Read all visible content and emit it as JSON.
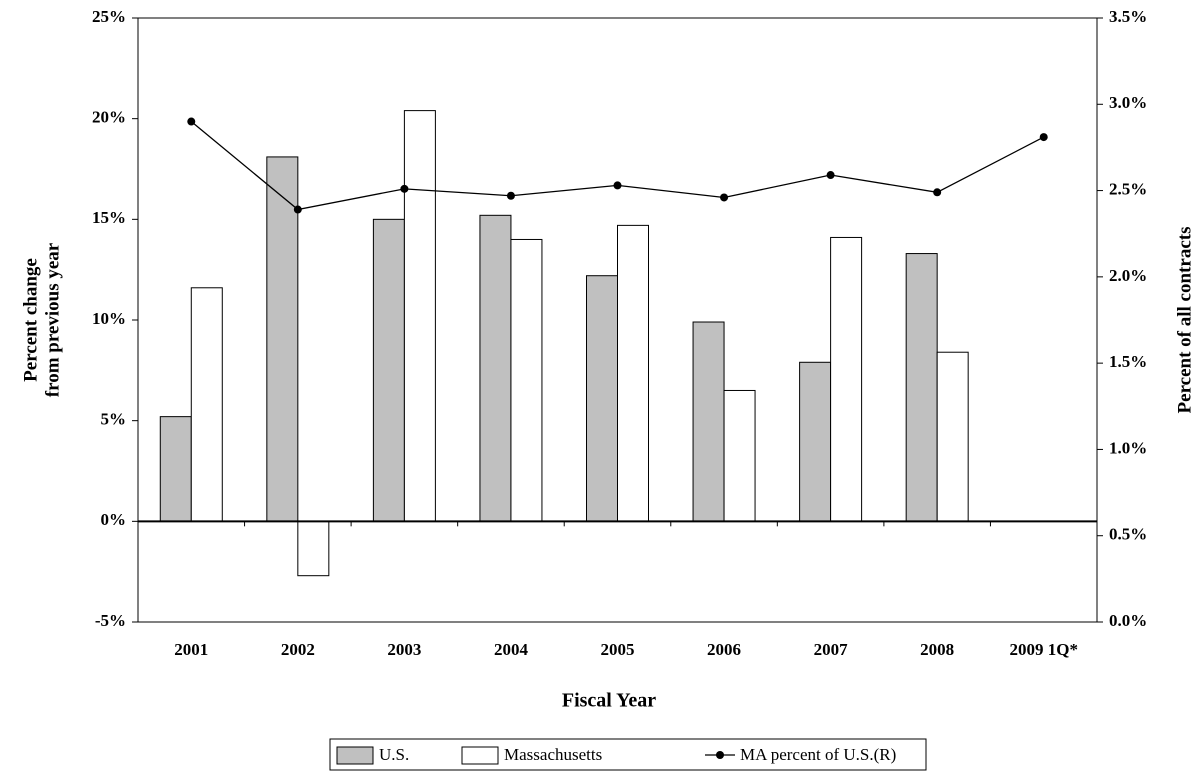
{
  "chart_data": {
    "type": "bar",
    "xlabel": "Fiscal Year",
    "ylabel": [
      "Percent change",
      "from previous year"
    ],
    "y2label": "Percent of all contracts",
    "categories": [
      "2001",
      "2002",
      "2003",
      "2004",
      "2005",
      "2006",
      "2007",
      "2008",
      "2009 1Q*"
    ],
    "series": [
      {
        "name": "U.S.",
        "color": "#c0c0c0",
        "type": "bar",
        "values": [
          5.2,
          18.1,
          15.0,
          15.2,
          12.2,
          9.9,
          7.9,
          13.3,
          null
        ]
      },
      {
        "name": "Massachusetts",
        "color": "#ffffff",
        "type": "bar",
        "values": [
          11.6,
          -2.7,
          20.4,
          14.0,
          14.7,
          6.5,
          14.1,
          8.4,
          null
        ]
      },
      {
        "name": "MA percent of U.S.(R)",
        "color": "#000000",
        "type": "line",
        "axis": "y2",
        "values": [
          2.9,
          2.39,
          2.51,
          2.47,
          2.53,
          2.46,
          2.59,
          2.49,
          2.81
        ]
      }
    ],
    "ylim": [
      -5,
      25
    ],
    "yticks": [
      {
        "value": -5,
        "label": "-5%"
      },
      {
        "value": 0,
        "label": "0%"
      },
      {
        "value": 5,
        "label": "5%"
      },
      {
        "value": 10,
        "label": "10%"
      },
      {
        "value": 15,
        "label": "15%"
      },
      {
        "value": 20,
        "label": "20%"
      },
      {
        "value": 25,
        "label": "25%"
      }
    ],
    "y2lim": [
      0,
      3.5
    ],
    "y2ticks": [
      {
        "value": 0,
        "label": "0.0%"
      },
      {
        "value": 0.5,
        "label": "0.5%"
      },
      {
        "value": 1.0,
        "label": "1.0%"
      },
      {
        "value": 1.5,
        "label": "1.5%"
      },
      {
        "value": 2.0,
        "label": "2.0%"
      },
      {
        "value": 2.5,
        "label": "2.5%"
      },
      {
        "value": 3.0,
        "label": "3.0%"
      },
      {
        "value": 3.5,
        "label": "3.5%"
      }
    ],
    "grid": false,
    "legend": "bottom"
  }
}
